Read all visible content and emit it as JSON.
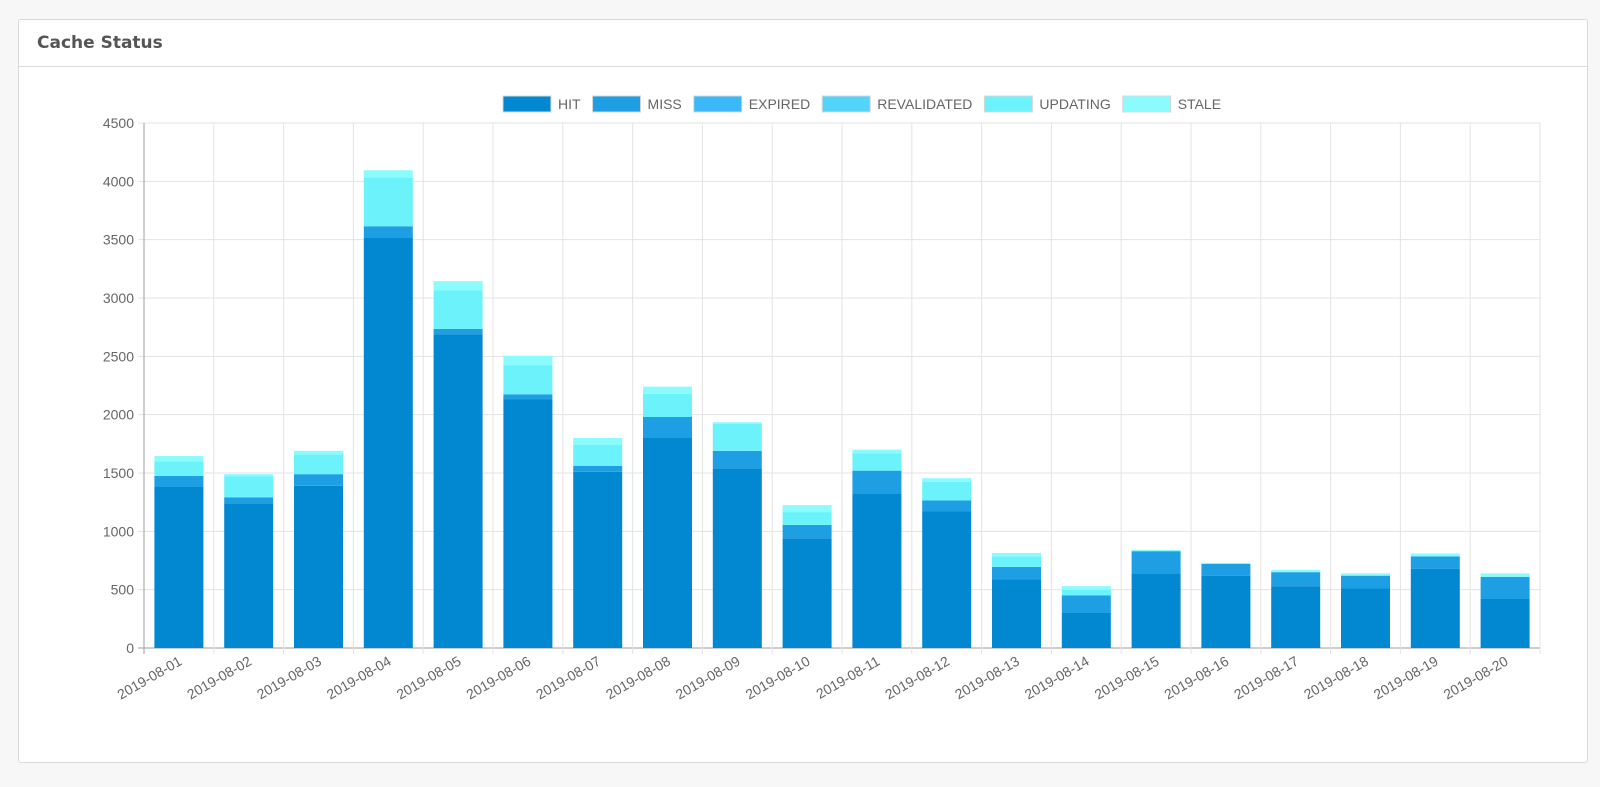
{
  "panel": {
    "title": "Cache Status"
  },
  "chart_data": {
    "type": "bar",
    "stacked": true,
    "title": "",
    "xlabel": "",
    "ylabel": "",
    "ylim": [
      0,
      4500
    ],
    "yticks": [
      0,
      500,
      1000,
      1500,
      2000,
      2500,
      3000,
      3500,
      4000,
      4500
    ],
    "grid": true,
    "legend_position": "top",
    "categories": [
      "2019-08-01",
      "2019-08-02",
      "2019-08-03",
      "2019-08-04",
      "2019-08-05",
      "2019-08-06",
      "2019-08-07",
      "2019-08-08",
      "2019-08-09",
      "2019-08-10",
      "2019-08-11",
      "2019-08-12",
      "2019-08-13",
      "2019-08-14",
      "2019-08-15",
      "2019-08-16",
      "2019-08-17",
      "2019-08-18",
      "2019-08-19",
      "2019-08-20"
    ],
    "series": [
      {
        "name": "HIT",
        "color": "#0288d1",
        "values": [
          1380,
          1240,
          1390,
          3520,
          2690,
          2130,
          1510,
          1800,
          1540,
          940,
          1320,
          1170,
          590,
          300,
          640,
          620,
          530,
          510,
          680,
          420
        ]
      },
      {
        "name": "MISS",
        "color": "#1e9fe3",
        "values": [
          95,
          50,
          100,
          95,
          45,
          45,
          50,
          180,
          150,
          115,
          200,
          95,
          105,
          150,
          190,
          100,
          120,
          110,
          105,
          190
        ]
      },
      {
        "name": "EXPIRED",
        "color": "#3bb8f7",
        "values": [
          0,
          0,
          0,
          0,
          0,
          0,
          0,
          0,
          0,
          0,
          0,
          0,
          0,
          0,
          0,
          0,
          0,
          0,
          0,
          0
        ]
      },
      {
        "name": "REVALIDATED",
        "color": "#52d4f8",
        "values": [
          0,
          0,
          0,
          0,
          0,
          0,
          0,
          0,
          0,
          0,
          0,
          0,
          0,
          0,
          0,
          0,
          0,
          0,
          0,
          0
        ]
      },
      {
        "name": "UPDATING",
        "color": "#6cf2fb",
        "values": [
          125,
          180,
          170,
          420,
          330,
          250,
          180,
          200,
          230,
          110,
          150,
          160,
          90,
          50,
          0,
          0,
          0,
          0,
          0,
          0
        ]
      },
      {
        "name": "STALE",
        "color": "#8afcfd",
        "values": [
          45,
          20,
          30,
          60,
          80,
          80,
          60,
          60,
          15,
          60,
          30,
          30,
          30,
          30,
          10,
          10,
          20,
          20,
          25,
          30
        ]
      }
    ]
  }
}
